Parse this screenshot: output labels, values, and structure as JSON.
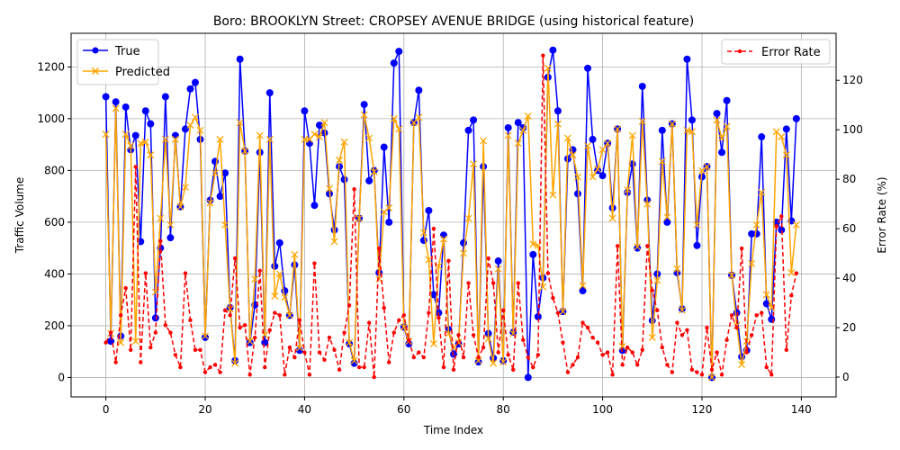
{
  "chart_data": {
    "type": "line",
    "title": "Boro: BROOKLYN Street: CROPSEY AVENUE BRIDGE (using historical feature)",
    "xlabel": "Time Index",
    "ylabel": "Traffic Volume",
    "y2label": "Error Rate (%)",
    "xlim": [
      -7,
      147
    ],
    "ylim": [
      -75,
      1330
    ],
    "y2lim": [
      -8,
      139
    ],
    "xticks": [
      0,
      20,
      40,
      60,
      80,
      100,
      120,
      140
    ],
    "yticks": [
      0,
      200,
      400,
      600,
      800,
      1000,
      1200
    ],
    "y2ticks": [
      0,
      20,
      40,
      60,
      80,
      100,
      120
    ],
    "grid": true,
    "legend_left": "upper-left",
    "legend_right": "upper-right",
    "colors": {
      "true": "#0000ff",
      "predicted": "#ffa500",
      "error": "#ff0000",
      "grid": "#b0b0b0"
    },
    "series": [
      {
        "name": "True",
        "axis": "left",
        "style": "line-circle",
        "values": [
          1085,
          140,
          1065,
          160,
          1045,
          880,
          935,
          525,
          1030,
          980,
          230,
          500,
          1085,
          540,
          935,
          660,
          960,
          1115,
          1140,
          920,
          155,
          685,
          835,
          700,
          790,
          270,
          65,
          1230,
          875,
          135,
          280,
          870,
          135,
          1100,
          430,
          520,
          335,
          240,
          435,
          105,
          1030,
          905,
          665,
          975,
          945,
          710,
          570,
          815,
          765,
          130,
          55,
          615,
          1055,
          760,
          800,
          405,
          890,
          600,
          1215,
          1260,
          195,
          130,
          985,
          1110,
          530,
          645,
          320,
          250,
          550,
          185,
          90,
          130,
          520,
          955,
          995,
          60,
          815,
          170,
          75,
          450,
          65,
          965,
          175,
          985,
          965,
          0,
          475,
          235,
          385,
          1160,
          1265,
          1030,
          255,
          845,
          880,
          710,
          335,
          1195,
          920,
          800,
          780,
          905,
          655,
          960,
          105,
          715,
          825,
          500,
          1125,
          685,
          220,
          400,
          955,
          600,
          980,
          405,
          265,
          1230,
          995,
          510,
          775,
          815,
          0,
          1020,
          870,
          1070,
          395,
          250,
          80,
          105,
          555,
          555,
          930,
          285,
          225,
          600,
          570,
          960,
          605,
          1000
        ]
      },
      {
        "name": "Predicted",
        "axis": "left",
        "style": "line-x",
        "values": [
          940,
          170,
          1040,
          135,
          940,
          895,
          140,
          905,
          910,
          860,
          330,
          615,
          920,
          590,
          920,
          660,
          735,
          975,
          1005,
          955,
          160,
          675,
          790,
          920,
          590,
          265,
          55,
          985,
          875,
          140,
          380,
          935,
          165,
          920,
          315,
          400,
          310,
          240,
          475,
          115,
          920,
          920,
          940,
          930,
          985,
          730,
          525,
          840,
          910,
          135,
          65,
          615,
          1015,
          925,
          795,
          380,
          640,
          655,
          1000,
          960,
          195,
          140,
          985,
          1005,
          560,
          455,
          130,
          430,
          535,
          170,
          115,
          135,
          480,
          615,
          825,
          65,
          915,
          150,
          55,
          420,
          60,
          935,
          170,
          905,
          955,
          1010,
          515,
          510,
          350,
          1195,
          705,
          980,
          255,
          925,
          860,
          775,
          355,
          895,
          775,
          805,
          880,
          905,
          615,
          960,
          120,
          725,
          935,
          505,
          990,
          670,
          155,
          375,
          835,
          620,
          980,
          420,
          260,
          955,
          950,
          590,
          800,
          815,
          0,
          995,
          925,
          970,
          395,
          200,
          50,
          140,
          440,
          590,
          715,
          320,
          270,
          950,
          930,
          860,
          405,
          590
        ]
      },
      {
        "name": "Error Rate",
        "axis": "right",
        "style": "dashed-dot",
        "values": [
          14,
          18,
          6,
          25,
          36,
          11,
          85,
          6,
          42,
          12,
          18,
          55,
          21,
          18,
          9,
          4,
          42,
          23,
          11,
          11,
          2,
          4,
          5,
          2,
          27,
          25,
          48,
          20,
          21,
          1,
          16,
          43,
          4,
          19,
          26,
          25,
          1,
          12,
          8,
          23,
          10,
          1,
          46,
          10,
          7,
          16,
          11,
          3,
          18,
          29,
          76,
          4,
          4,
          22,
          0,
          52,
          28,
          6,
          18,
          23,
          25,
          15,
          8,
          10,
          8,
          26,
          60,
          24,
          4,
          47,
          3,
          17,
          8,
          38,
          17,
          8,
          12,
          48,
          38,
          10,
          27,
          9,
          3,
          38,
          15,
          8,
          4,
          9,
          130,
          42,
          32,
          26,
          14,
          2,
          5,
          8,
          22,
          20,
          16,
          14,
          9,
          10,
          1,
          53,
          5,
          12,
          10,
          5,
          11,
          53,
          35,
          27,
          12,
          5,
          2,
          22,
          17,
          19,
          3,
          2,
          1,
          20,
          3,
          10,
          1,
          15,
          25,
          20,
          52,
          10,
          17,
          25,
          26,
          4,
          1,
          61,
          65,
          11,
          33,
          42
        ]
      }
    ]
  }
}
